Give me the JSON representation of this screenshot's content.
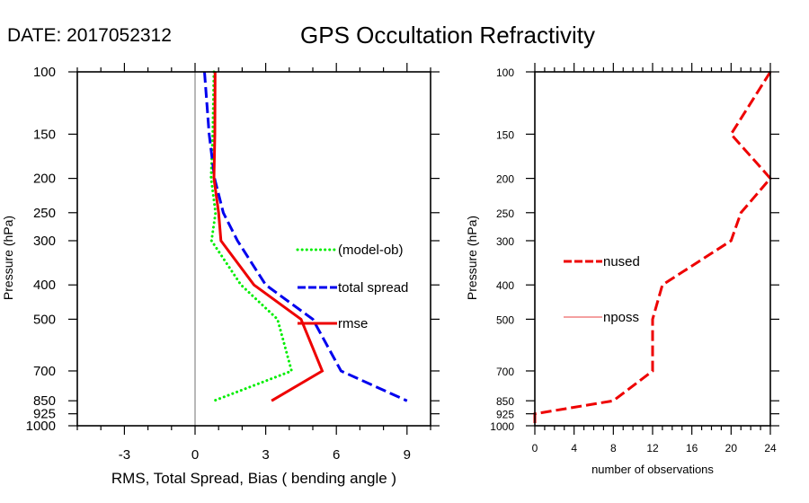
{
  "date_label": "DATE: 2017052312",
  "title": "GPS Occultation Refractivity",
  "chart_data": [
    {
      "type": "line",
      "name": "stats-panel",
      "xlabel": "RMS, Total Spread, Bias ( bending angle )",
      "ylabel": "Pressure (hPa)",
      "xlim": [
        -5,
        10
      ],
      "ylim": [
        1000,
        100
      ],
      "y_scale": "log",
      "x_major_ticks": [
        -3,
        0,
        3,
        6,
        9
      ],
      "x_minor_step": 1,
      "y_ticks": [
        100,
        150,
        200,
        250,
        300,
        400,
        500,
        700,
        850,
        925,
        1000
      ],
      "zero_line": true,
      "legend_position": "center-right",
      "series": [
        {
          "name": "(model-ob)",
          "color": "#00ee00",
          "style": "dotted",
          "pressure": [
            100,
            150,
            200,
            250,
            300,
            400,
            500,
            700,
            850
          ],
          "values": [
            0.8,
            0.75,
            0.68,
            0.87,
            0.7,
            1.95,
            3.5,
            4.1,
            0.8
          ]
        },
        {
          "name": "total spread",
          "color": "#0000ee",
          "style": "dashed",
          "pressure": [
            100,
            150,
            200,
            250,
            300,
            400,
            500,
            700,
            850
          ],
          "values": [
            0.4,
            0.6,
            0.83,
            1.2,
            1.8,
            3.0,
            5.0,
            6.2,
            9.0
          ]
        },
        {
          "name": "rmse",
          "color": "#ee0000",
          "style": "solid",
          "pressure": [
            100,
            150,
            200,
            250,
            300,
            400,
            500,
            700,
            850
          ],
          "values": [
            0.85,
            0.84,
            0.8,
            1.0,
            1.1,
            2.5,
            4.5,
            5.4,
            3.25
          ]
        }
      ]
    },
    {
      "type": "line",
      "name": "count-panel",
      "xlabel": "number of observations",
      "ylabel": "Pressure (hPa)",
      "xlim": [
        0,
        24
      ],
      "ylim": [
        1000,
        100
      ],
      "y_scale": "log",
      "x_major_ticks": [
        0,
        4,
        8,
        12,
        16,
        20,
        24
      ],
      "x_minor_step": 1,
      "y_ticks": [
        100,
        150,
        200,
        250,
        300,
        400,
        500,
        700,
        850,
        925,
        1000
      ],
      "legend_position": "center-left",
      "series": [
        {
          "name": "nused",
          "color": "#ee0000",
          "style": "dashed",
          "pressure": [
            100,
            150,
            200,
            250,
            300,
            400,
            500,
            700,
            850,
            925,
            1000
          ],
          "values": [
            24,
            20,
            24,
            21,
            20,
            13,
            12,
            12,
            8,
            0,
            0
          ]
        },
        {
          "name": "nposs",
          "color": "#f08080",
          "style": "solid",
          "pressure": [],
          "values": []
        }
      ]
    }
  ]
}
